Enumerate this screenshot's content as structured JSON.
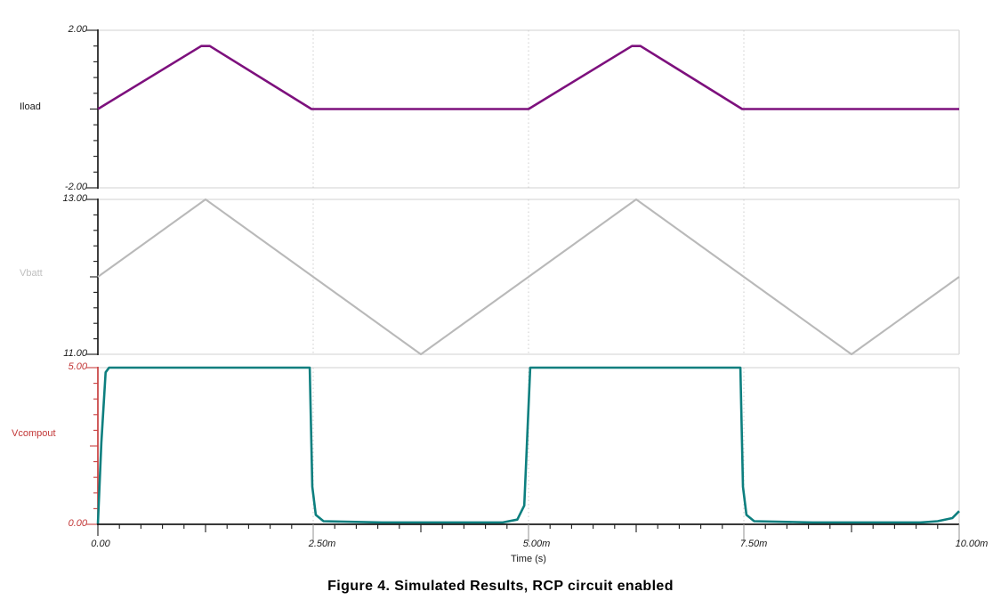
{
  "figure": {
    "caption": "Figure 4. Simulated Results, RCP circuit enabled"
  },
  "colors": {
    "iload_trace": "#7d107d",
    "vbatt_trace": "#b9b9b9",
    "vcompout_trace": "#0d7f7f",
    "black_axis": "#1c1c1c",
    "red_axis": "#c84040",
    "plot_border": "#d9d9d9",
    "gridline": "#cccccc",
    "major_xtick_line": "#9a9a9a"
  },
  "chart_data": [
    {
      "type": "line",
      "name": "Iload",
      "ylabel": "Iload",
      "ylim": [
        -2.0,
        2.0
      ],
      "y_tick_labels": {
        "top": "2.00",
        "bottom": "-2.00"
      },
      "grid": "vertical-dotted",
      "points_ms_value": [
        [
          0,
          0
        ],
        [
          1.2,
          1.6
        ],
        [
          1.3,
          1.6
        ],
        [
          2.48,
          0
        ],
        [
          5.0,
          0
        ],
        [
          6.2,
          1.6
        ],
        [
          6.3,
          1.6
        ],
        [
          7.48,
          0
        ],
        [
          10,
          0
        ]
      ]
    },
    {
      "type": "line",
      "name": "Vbatt",
      "ylabel": "Vbatt",
      "ylim": [
        11.0,
        13.0
      ],
      "y_tick_labels": {
        "top": "13.00",
        "bottom": "11.00"
      },
      "grid": "vertical-dotted",
      "points_ms_value": [
        [
          0,
          12
        ],
        [
          1.25,
          13
        ],
        [
          3.75,
          11
        ],
        [
          6.25,
          13
        ],
        [
          8.75,
          11
        ],
        [
          10,
          12
        ]
      ]
    },
    {
      "type": "line",
      "name": "Vcompout",
      "ylabel": "Vcompout",
      "ylim": [
        0.0,
        5.0
      ],
      "y_tick_labels": {
        "top": "5.00",
        "bottom": "0.00"
      },
      "grid": "vertical-dotted",
      "points_ms_value": [
        [
          0,
          0
        ],
        [
          0.04,
          2.6
        ],
        [
          0.09,
          4.85
        ],
        [
          0.13,
          5
        ],
        [
          2.46,
          5
        ],
        [
          2.49,
          1.2
        ],
        [
          2.53,
          0.3
        ],
        [
          2.62,
          0.1
        ],
        [
          3.3,
          0.06
        ],
        [
          4.7,
          0.06
        ],
        [
          4.87,
          0.15
        ],
        [
          4.95,
          0.6
        ],
        [
          4.98,
          2.5
        ],
        [
          5.02,
          5
        ],
        [
          7.46,
          5
        ],
        [
          7.49,
          1.2
        ],
        [
          7.53,
          0.3
        ],
        [
          7.62,
          0.1
        ],
        [
          8.3,
          0.06
        ],
        [
          9.55,
          0.06
        ],
        [
          9.75,
          0.1
        ],
        [
          9.92,
          0.2
        ],
        [
          10,
          0.42
        ]
      ]
    }
  ],
  "x_axis": {
    "label": "Time (s)",
    "xlim_ms": [
      0,
      10
    ],
    "ticks": [
      {
        "label": "0.00",
        "ms": 0.0
      },
      {
        "label": "2.50m",
        "ms": 2.5
      },
      {
        "label": "5.00m",
        "ms": 5.0
      },
      {
        "label": "7.50m",
        "ms": 7.5
      },
      {
        "label": "10.00m",
        "ms": 10.0
      }
    ],
    "gridlines_ms": [
      2.5,
      5.0,
      7.5
    ],
    "minor_tick_step_ms": 0.25
  }
}
